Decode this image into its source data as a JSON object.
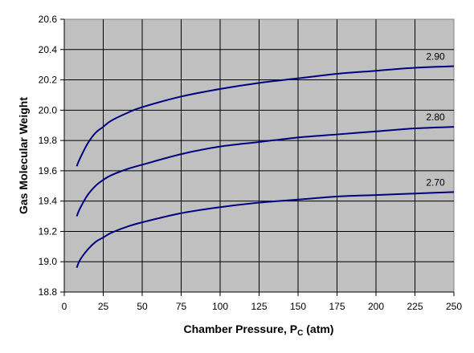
{
  "chart_data": {
    "type": "line",
    "title": "",
    "xlabel": "Chamber Pressure, P",
    "xlabel_subscript": "C",
    "xlabel_unit": "(atm)",
    "ylabel": "Gas Molecular Weight",
    "xlim": [
      0,
      250
    ],
    "ylim": [
      18.8,
      20.6
    ],
    "x_ticks": [
      0,
      25,
      50,
      75,
      100,
      125,
      150,
      175,
      200,
      225,
      250
    ],
    "y_ticks": [
      18.8,
      19.0,
      19.2,
      19.4,
      19.6,
      19.8,
      20.0,
      20.2,
      20.4,
      20.6
    ],
    "y_tick_labels": [
      "18.8",
      "19.0",
      "19.2",
      "19.4",
      "19.6",
      "19.8",
      "20.0",
      "20.2",
      "20.4",
      "20.6"
    ],
    "grid": true,
    "legend": "none",
    "x": [
      8,
      10,
      15,
      20,
      25,
      30,
      40,
      50,
      75,
      100,
      125,
      150,
      175,
      200,
      225,
      250
    ],
    "series": [
      {
        "name": "2.90",
        "values": [
          19.63,
          19.68,
          19.78,
          19.85,
          19.89,
          19.93,
          19.98,
          20.02,
          20.09,
          20.14,
          20.18,
          20.21,
          20.24,
          20.26,
          20.28,
          20.29
        ]
      },
      {
        "name": "2.80",
        "values": [
          19.3,
          19.35,
          19.44,
          19.5,
          19.54,
          19.57,
          19.61,
          19.64,
          19.71,
          19.76,
          19.79,
          19.82,
          19.84,
          19.86,
          19.88,
          19.89
        ]
      },
      {
        "name": "2.70",
        "values": [
          18.96,
          19.01,
          19.08,
          19.13,
          19.16,
          19.19,
          19.23,
          19.26,
          19.32,
          19.36,
          19.39,
          19.41,
          19.43,
          19.44,
          19.45,
          19.46
        ]
      }
    ],
    "colors": {
      "plot_background": "#c0c0c0",
      "grid": "#000000",
      "line": "#000080"
    }
  }
}
